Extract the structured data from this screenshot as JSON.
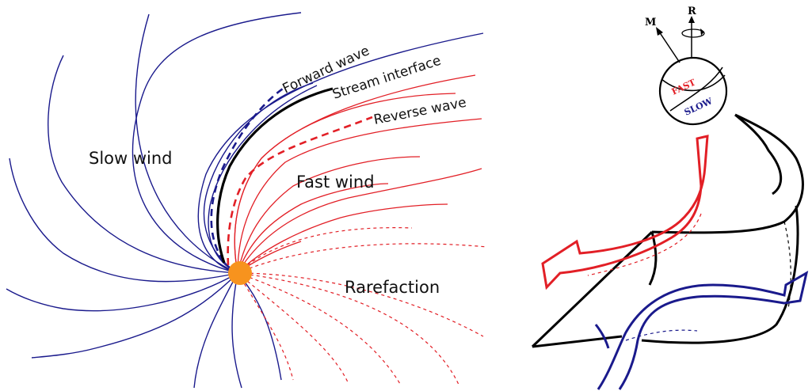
{
  "left_panel": {
    "labels": {
      "forward_wave": "Forward wave",
      "stream_interface": "Stream interface",
      "reverse_wave": "Reverse wave",
      "slow_wind": "Slow wind",
      "fast_wind": "Fast wind",
      "rarefaction": "Rarefaction"
    }
  },
  "right_panel": {
    "labels": {
      "magnetic_axis": "M",
      "rotation_axis": "R",
      "fast_hemisphere": "FAST",
      "slow_hemisphere": "SLOW"
    }
  },
  "colors": {
    "slow": "#1a1a8c",
    "fast": "#e21f26",
    "interface": "#000000",
    "sun": "#f7931e"
  }
}
